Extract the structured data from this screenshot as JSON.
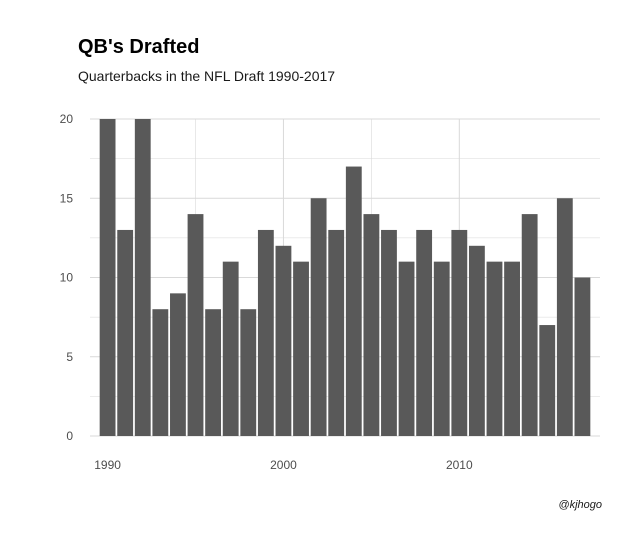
{
  "chart_data": {
    "type": "bar",
    "title": "QB's Drafted",
    "subtitle": "Quarterbacks in the NFL Draft 1990-2017",
    "caption": "@kjhogo",
    "xlabel": "",
    "ylabel": "",
    "x": [
      1990,
      1991,
      1992,
      1993,
      1994,
      1995,
      1996,
      1997,
      1998,
      1999,
      2000,
      2001,
      2002,
      2003,
      2004,
      2005,
      2006,
      2007,
      2008,
      2009,
      2010,
      2011,
      2012,
      2013,
      2014,
      2015,
      2016,
      2017
    ],
    "values": [
      20,
      13,
      20,
      8,
      9,
      14,
      8,
      11,
      8,
      13,
      12,
      11,
      15,
      13,
      17,
      14,
      13,
      11,
      13,
      11,
      13,
      12,
      11,
      11,
      14,
      7,
      15,
      10
    ],
    "xlim": [
      1989,
      2018
    ],
    "ylim": [
      0,
      20
    ],
    "x_ticks": [
      1990,
      2000,
      2010
    ],
    "y_ticks": [
      0,
      5,
      10,
      15,
      20
    ],
    "grid": true,
    "bar_color": "#595959",
    "grid_color": "#d9d9d9"
  }
}
